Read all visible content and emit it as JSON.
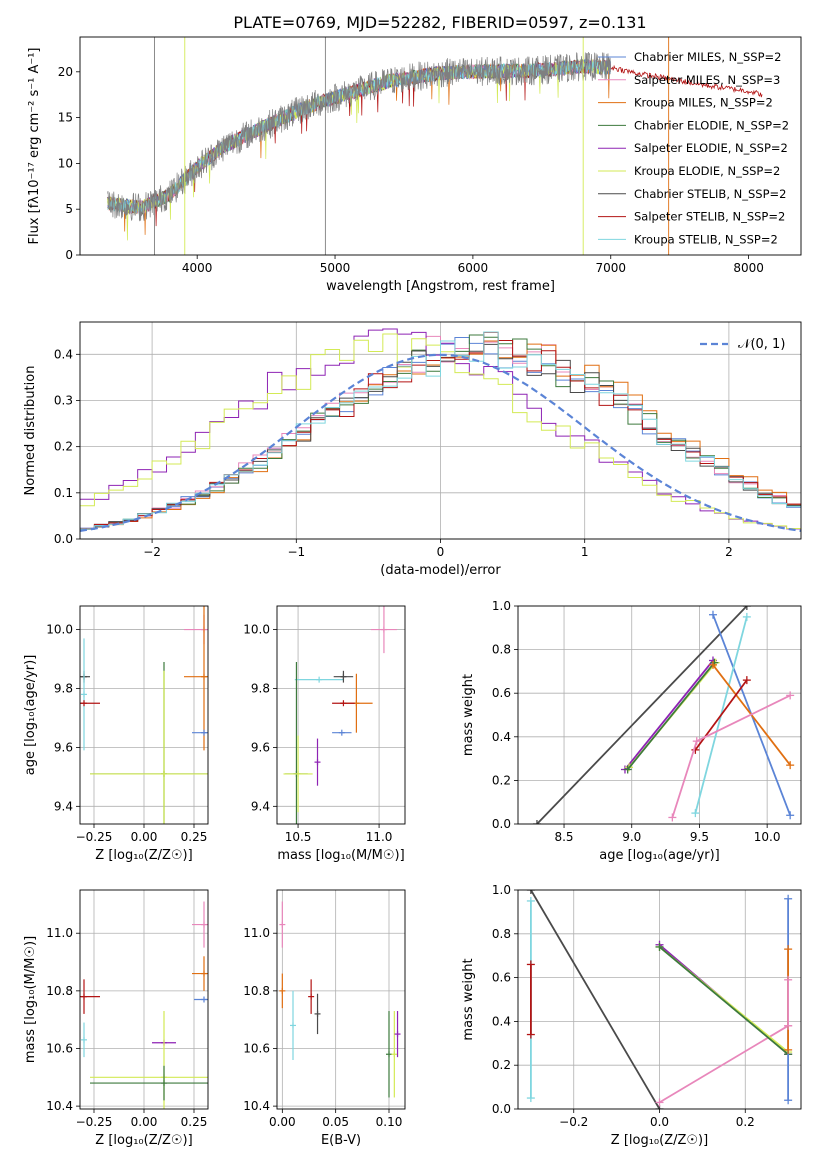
{
  "figure": {
    "title": "PLATE=0769, MJD=52282, FIBERID=0597, z=0.131"
  },
  "colors": {
    "chabrier_miles": "#5b84d6",
    "salpeter_miles": "#e887bb",
    "kroupa_miles": "#e06f12",
    "chabrier_elodie": "#3d7a3d",
    "salpeter_elodie": "#8e23b4",
    "kroupa_elodie": "#d3ea55",
    "chabrier_stelib": "#4a4a4a",
    "salpeter_stelib": "#b31414",
    "kroupa_stelib": "#7fd6df",
    "data_spectrum": "#7f7f7f",
    "normal_curve": "#5b84d6",
    "grid": "#b0b0b0"
  },
  "chart_data": [
    {
      "id": "spectrum",
      "type": "line",
      "xlabel": "wavelength [Angstrom, rest frame]",
      "ylabel": "Flux [fλ10⁻¹⁷ erg cm⁻² s⁻¹ A⁻¹]",
      "xlim": [
        3150,
        8380
      ],
      "ylim": [
        0,
        23.8
      ],
      "xticks": [
        4000,
        5000,
        6000,
        7000,
        8000
      ],
      "yticks": [
        0,
        5,
        10,
        15,
        20
      ],
      "grid": false,
      "legend_position": "right",
      "legend": [
        "Chabrier MILES, N_SSP=2",
        "Salpeter MILES, N_SSP=3",
        "Kroupa MILES, N_SSP=2",
        "Chabrier ELODIE, N_SSP=2",
        "Salpeter ELODIE, N_SSP=2",
        "Kroupa ELODIE, N_SSP=2",
        "Chabrier STELIB, N_SSP=2",
        "Salpeter STELIB, N_SSP=2",
        "Kroupa STELIB, N_SSP=2"
      ],
      "continuum": {
        "x": [
          3350,
          3600,
          3800,
          4000,
          4200,
          4400,
          4600,
          4800,
          5000,
          5200,
          5400,
          5600,
          5800,
          6000,
          6200,
          6400,
          6600,
          6800,
          7000
        ],
        "y": [
          5.6,
          5.2,
          6.6,
          9.6,
          11.9,
          13.4,
          14.8,
          16.2,
          17.2,
          18.1,
          19.0,
          19.5,
          19.9,
          20.0,
          20.1,
          20.1,
          20.3,
          20.6,
          20.5
        ]
      },
      "extended_series": {
        "x": [
          7000,
          7200,
          7400,
          7700,
          8000,
          8100
        ],
        "y": [
          20.5,
          19.8,
          19.3,
          18.5,
          17.9,
          17.5
        ]
      }
    },
    {
      "id": "residual_histogram",
      "type": "area",
      "xlabel": "(data-model)/error",
      "ylabel": "Normed distribution",
      "xlim": [
        -2.5,
        2.5
      ],
      "ylim": [
        0,
        0.47
      ],
      "xticks": [
        -2,
        -1,
        0,
        1,
        2
      ],
      "yticks": [
        0.0,
        0.1,
        0.2,
        0.3,
        0.4
      ],
      "grid": true,
      "legend_position": "top-right",
      "legend": [
        "𝒩(0, 1)"
      ],
      "histograms": [
        {
          "color": "chabrier_miles",
          "mean": 0.3,
          "peak": 0.41
        },
        {
          "color": "salpeter_miles",
          "mean": 0.3,
          "peak": 0.42
        },
        {
          "color": "kroupa_miles",
          "mean": 0.35,
          "peak": 0.42
        },
        {
          "color": "chabrier_elodie",
          "mean": 0.3,
          "peak": 0.41
        },
        {
          "color": "salpeter_elodie",
          "mean": -0.35,
          "peak": 0.42
        },
        {
          "color": "kroupa_elodie",
          "mean": -0.35,
          "peak": 0.41
        },
        {
          "color": "chabrier_stelib",
          "mean": 0.3,
          "peak": 0.41
        },
        {
          "color": "salpeter_stelib",
          "mean": 0.3,
          "peak": 0.41
        },
        {
          "color": "kroupa_stelib",
          "mean": 0.3,
          "peak": 0.41
        }
      ]
    },
    {
      "id": "age_vs_Z",
      "type": "scatter",
      "xlabel": "Z [log₁₀(Z/Z☉)]",
      "ylabel": "age  [log₁₀(age/yr)]",
      "xlim": [
        -0.32,
        0.32
      ],
      "ylim": [
        9.34,
        10.08
      ],
      "xticks": [
        -0.25,
        0.0,
        0.25
      ],
      "yticks": [
        9.4,
        9.6,
        9.8,
        10.0
      ],
      "grid": true,
      "points": [
        {
          "color": "salpeter_miles",
          "x": 0.3,
          "y": 10.0,
          "xerr": 0.1,
          "yerr": 0.05
        },
        {
          "color": "kroupa_miles",
          "x": 0.3,
          "y": 9.84,
          "xerr": 0.1,
          "yerr": 0.25
        },
        {
          "color": "chabrier_miles",
          "x": 0.3,
          "y": 9.65,
          "xerr": 0.06,
          "yerr": 0.0
        },
        {
          "color": "chabrier_stelib",
          "x": -0.3,
          "y": 9.84,
          "xerr": 0.03,
          "yerr": 0.02
        },
        {
          "color": "kroupa_stelib",
          "x": -0.3,
          "y": 9.78,
          "xerr": 0.0,
          "yerr": 0.19
        },
        {
          "color": "salpeter_stelib",
          "x": -0.3,
          "y": 9.75,
          "xerr": 0.08,
          "yerr": 0.0
        },
        {
          "color": "chabrier_elodie",
          "x": 0.1,
          "y": 9.51,
          "xerr": 0.37,
          "yerr": 0.38
        },
        {
          "color": "kroupa_elodie",
          "x": 0.1,
          "y": 9.51,
          "xerr": 0.37,
          "yerr": 0.35
        }
      ]
    },
    {
      "id": "age_vs_mass",
      "type": "scatter",
      "xlabel": "mass [log₁₀(M/M☉)]",
      "ylabel": "",
      "xlim": [
        10.37,
        11.16
      ],
      "ylim": [
        9.34,
        10.08
      ],
      "xticks": [
        10.5,
        11.0
      ],
      "yticks": [
        9.4,
        9.6,
        9.8,
        10.0
      ],
      "grid": true,
      "points": [
        {
          "color": "salpeter_miles",
          "x": 11.03,
          "y": 10.0,
          "xerr": 0.08,
          "yerr": 0.08
        },
        {
          "color": "kroupa_miles",
          "x": 10.86,
          "y": 9.75,
          "xerr": 0.1,
          "yerr": 0.1
        },
        {
          "color": "chabrier_miles",
          "x": 10.77,
          "y": 9.65,
          "xerr": 0.06,
          "yerr": 0.0
        },
        {
          "color": "kroupa_stelib",
          "x": 10.63,
          "y": 9.83,
          "xerr": 0.15,
          "yerr": 0.0
        },
        {
          "color": "chabrier_stelib",
          "x": 10.78,
          "y": 9.84,
          "xerr": 0.06,
          "yerr": 0.02
        },
        {
          "color": "salpeter_stelib",
          "x": 10.78,
          "y": 9.75,
          "xerr": 0.07,
          "yerr": 0.0
        },
        {
          "color": "salpeter_elodie",
          "x": 10.62,
          "y": 9.55,
          "xerr": 0.0,
          "yerr": 0.08
        },
        {
          "color": "chabrier_elodie",
          "x": 10.49,
          "y": 9.51,
          "xerr": 0.07,
          "yerr": 0.38
        },
        {
          "color": "kroupa_elodie",
          "x": 10.5,
          "y": 9.51,
          "xerr": 0.09,
          "yerr": 0.13
        }
      ]
    },
    {
      "id": "weight_vs_age",
      "type": "line",
      "xlabel": "age  [log₁₀(age/yr)]",
      "ylabel": "mass weight",
      "xlim": [
        8.16,
        10.25
      ],
      "ylim": [
        0,
        1
      ],
      "xticks": [
        8.5,
        9.0,
        9.5,
        10.0
      ],
      "yticks": [
        0.0,
        0.2,
        0.4,
        0.6,
        0.8,
        1.0
      ],
      "grid": true,
      "series": [
        {
          "color": "chabrier_stelib",
          "x": [
            8.3,
            9.85
          ],
          "y": [
            0.0,
            1.0
          ]
        },
        {
          "color": "chabrier_miles",
          "x": [
            9.6,
            10.17
          ],
          "y": [
            0.96,
            0.04
          ]
        },
        {
          "color": "kroupa_stelib",
          "x": [
            9.47,
            9.85
          ],
          "y": [
            0.05,
            0.95
          ]
        },
        {
          "color": "salpeter_elodie",
          "x": [
            8.95,
            9.6
          ],
          "y": [
            0.25,
            0.75
          ]
        },
        {
          "color": "kroupa_elodie",
          "x": [
            8.98,
            9.62
          ],
          "y": [
            0.26,
            0.74
          ]
        },
        {
          "color": "chabrier_elodie",
          "x": [
            8.97,
            9.61
          ],
          "y": [
            0.25,
            0.74
          ]
        },
        {
          "color": "kroupa_miles",
          "x": [
            9.6,
            10.17
          ],
          "y": [
            0.73,
            0.27
          ]
        },
        {
          "color": "salpeter_stelib",
          "x": [
            9.47,
            9.85
          ],
          "y": [
            0.34,
            0.66
          ]
        },
        {
          "color": "salpeter_miles",
          "x": [
            9.3,
            9.48,
            10.17
          ],
          "y": [
            0.03,
            0.38,
            0.59
          ]
        }
      ]
    },
    {
      "id": "mass_vs_Z",
      "type": "scatter",
      "xlabel": "Z [log₁₀(Z/Z☉)]",
      "ylabel": "mass [log₁₀(M/M☉)]",
      "xlim": [
        -0.32,
        0.32
      ],
      "ylim": [
        10.39,
        11.15
      ],
      "xticks": [
        -0.25,
        0.0,
        0.25
      ],
      "yticks": [
        10.4,
        10.6,
        10.8,
        11.0
      ],
      "grid": true,
      "points": [
        {
          "color": "salpeter_miles",
          "x": 0.3,
          "y": 11.03,
          "xerr": 0.06,
          "yerr": 0.08
        },
        {
          "color": "kroupa_miles",
          "x": 0.3,
          "y": 10.86,
          "xerr": 0.06,
          "yerr": 0.06
        },
        {
          "color": "chabrier_miles",
          "x": 0.3,
          "y": 10.77,
          "xerr": 0.05,
          "yerr": 0.0
        },
        {
          "color": "salpeter_stelib",
          "x": -0.3,
          "y": 10.78,
          "xerr": 0.08,
          "yerr": 0.06
        },
        {
          "color": "kroupa_stelib",
          "x": -0.3,
          "y": 10.63,
          "xerr": 0.0,
          "yerr": 0.06
        },
        {
          "color": "salpeter_elodie",
          "x": 0.1,
          "y": 10.62,
          "xerr": 0.06,
          "yerr": 0.0
        },
        {
          "color": "kroupa_elodie",
          "x": 0.1,
          "y": 10.5,
          "xerr": 0.37,
          "yerr": 0.23
        },
        {
          "color": "chabrier_elodie",
          "x": 0.1,
          "y": 10.48,
          "xerr": 0.37,
          "yerr": 0.06
        }
      ]
    },
    {
      "id": "mass_vs_ebv",
      "type": "scatter",
      "xlabel": "E(B-V)",
      "ylabel": "",
      "xlim": [
        -0.005,
        0.115
      ],
      "ylim": [
        10.39,
        11.15
      ],
      "xticks": [
        0.0,
        0.05,
        0.1
      ],
      "yticks": [
        10.4,
        10.6,
        10.8,
        11.0
      ],
      "grid": true,
      "points": [
        {
          "color": "salpeter_miles",
          "x": 0.0,
          "y": 11.03,
          "xerr": 0.0,
          "yerr": 0.08
        },
        {
          "color": "kroupa_miles",
          "x": 0.0,
          "y": 10.8,
          "xerr": 0.0,
          "yerr": 0.06
        },
        {
          "color": "kroupa_stelib",
          "x": 0.01,
          "y": 10.68,
          "xerr": 0.0,
          "yerr": 0.12
        },
        {
          "color": "salpeter_stelib",
          "x": 0.027,
          "y": 10.78,
          "xerr": 0.0,
          "yerr": 0.06
        },
        {
          "color": "chabrier_stelib",
          "x": 0.033,
          "y": 10.72,
          "xerr": 0.0,
          "yerr": 0.07
        },
        {
          "color": "chabrier_elodie",
          "x": 0.1,
          "y": 10.58,
          "xerr": 0.0,
          "yerr": 0.15
        },
        {
          "color": "kroupa_elodie",
          "x": 0.105,
          "y": 10.58,
          "xerr": 0.0,
          "yerr": 0.15
        },
        {
          "color": "salpeter_elodie",
          "x": 0.108,
          "y": 10.65,
          "xerr": 0.0,
          "yerr": 0.08
        }
      ]
    },
    {
      "id": "weight_vs_Z",
      "type": "line",
      "xlabel": "Z [log₁₀(Z/Z☉)]",
      "ylabel": "mass weight",
      "xlim": [
        -0.33,
        0.33
      ],
      "ylim": [
        0,
        1
      ],
      "xticks": [
        -0.2,
        0.0,
        0.2
      ],
      "yticks": [
        0.0,
        0.2,
        0.4,
        0.6,
        0.8,
        1.0
      ],
      "grid": true,
      "series": [
        {
          "color": "chabrier_stelib",
          "x": [
            -0.3,
            0.0
          ],
          "y": [
            1.0,
            0.0
          ]
        },
        {
          "color": "salpeter_miles",
          "x": [
            0.0,
            0.3
          ],
          "y": [
            0.03,
            0.38
          ]
        },
        {
          "color": "salpeter_elodie",
          "x": [
            0.0,
            0.3
          ],
          "y": [
            0.75,
            0.25
          ]
        },
        {
          "color": "kroupa_elodie",
          "x": [
            0.0,
            0.3
          ],
          "y": [
            0.74,
            0.26
          ]
        },
        {
          "color": "chabrier_elodie",
          "x": [
            0.0,
            0.3
          ],
          "y": [
            0.74,
            0.25
          ]
        },
        {
          "color": "chabrier_miles",
          "x": [
            0.3,
            0.3
          ],
          "y": [
            0.04,
            0.96
          ]
        },
        {
          "color": "kroupa_miles",
          "x": [
            0.3,
            0.3
          ],
          "y": [
            0.27,
            0.73
          ]
        },
        {
          "color": "salpeter_miles",
          "x": [
            0.3,
            0.3
          ],
          "y": [
            0.38,
            0.59
          ]
        },
        {
          "color": "kroupa_stelib",
          "x": [
            -0.3,
            -0.3
          ],
          "y": [
            0.05,
            0.95
          ]
        },
        {
          "color": "salpeter_stelib",
          "x": [
            -0.3,
            -0.3
          ],
          "y": [
            0.34,
            0.66
          ]
        }
      ]
    }
  ]
}
